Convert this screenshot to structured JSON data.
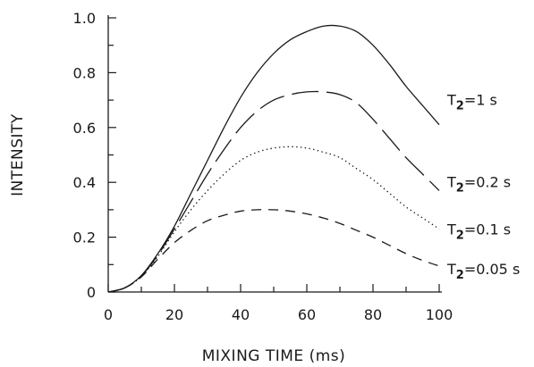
{
  "chart_data": {
    "type": "line",
    "xlabel": "MIXING TIME (ms)",
    "ylabel": "INTENSITY",
    "xlim": [
      0,
      100
    ],
    "ylim": [
      0,
      1.0
    ],
    "x_ticks": [
      "0",
      "20",
      "40",
      "60",
      "80",
      "100"
    ],
    "y_ticks": [
      "0",
      "0.2",
      "0.4",
      "0.6",
      "0.8",
      "1.0"
    ],
    "grid": false,
    "x": [
      0,
      5,
      10,
      15,
      20,
      25,
      30,
      35,
      40,
      45,
      50,
      55,
      60,
      65,
      70,
      75,
      80,
      85,
      90,
      95,
      100
    ],
    "series": [
      {
        "name": "T₂=1 s",
        "label_main": "T",
        "label_sub": "2",
        "label_rest": "=1 s",
        "style": "solid",
        "values": [
          0.0,
          0.015,
          0.06,
          0.14,
          0.24,
          0.36,
          0.48,
          0.6,
          0.71,
          0.8,
          0.87,
          0.92,
          0.95,
          0.97,
          0.97,
          0.95,
          0.9,
          0.83,
          0.75,
          0.68,
          0.61
        ]
      },
      {
        "name": "T₂=0.2 s",
        "label_main": "T",
        "label_sub": "2",
        "label_rest": "=0.2 s",
        "style": "longdash",
        "values": [
          0.0,
          0.015,
          0.058,
          0.135,
          0.23,
          0.33,
          0.43,
          0.52,
          0.6,
          0.66,
          0.7,
          0.72,
          0.73,
          0.73,
          0.72,
          0.69,
          0.63,
          0.56,
          0.49,
          0.43,
          0.37
        ]
      },
      {
        "name": "T₂=0.1 s",
        "label_main": "T",
        "label_sub": "2",
        "label_rest": "=0.1 s",
        "style": "dotted",
        "values": [
          0.0,
          0.015,
          0.057,
          0.13,
          0.22,
          0.3,
          0.37,
          0.43,
          0.48,
          0.51,
          0.525,
          0.53,
          0.525,
          0.51,
          0.49,
          0.45,
          0.41,
          0.36,
          0.31,
          0.27,
          0.23
        ]
      },
      {
        "name": "T₂=0.05 s",
        "label_main": "T",
        "label_sub": "2",
        "label_rest": "=0.05 s",
        "style": "dashed",
        "values": [
          0.0,
          0.015,
          0.055,
          0.12,
          0.18,
          0.225,
          0.26,
          0.28,
          0.295,
          0.3,
          0.3,
          0.295,
          0.285,
          0.27,
          0.25,
          0.225,
          0.2,
          0.17,
          0.14,
          0.115,
          0.095
        ]
      }
    ]
  }
}
